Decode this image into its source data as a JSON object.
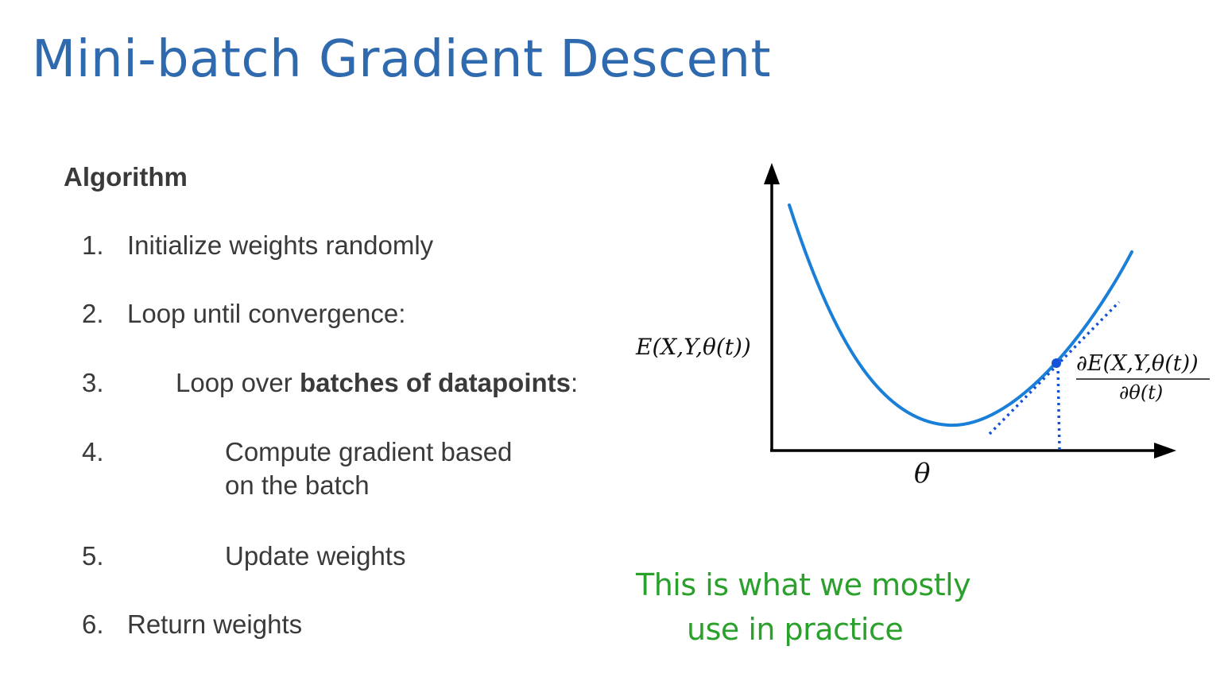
{
  "slide": {
    "title": "Mini-batch Gradient Descent",
    "section_heading": "Algorithm"
  },
  "steps": [
    {
      "num": "1.",
      "text": "Initialize weights randomly"
    },
    {
      "num": "2.",
      "text": "Loop until convergence:"
    },
    {
      "num": "3.",
      "text_before": "Loop over ",
      "text_bold": "batches of datapoints",
      "text_after": ":"
    },
    {
      "num": "4.",
      "line1": "Compute gradient based",
      "line2": "on the batch"
    },
    {
      "num": "5.",
      "text": "Update weights"
    },
    {
      "num": "6.",
      "text": "Return weights"
    }
  ],
  "diagram": {
    "y_label": "E(X,Y,θ(t))",
    "x_label": "θ",
    "gradient_label_numerator": "∂E(X,Y,θ(t))",
    "gradient_label_denominator": "∂θ(t)",
    "curve_color": "#1a7fd6",
    "tangent_color": "#1552d9",
    "point_color": "#1552d9"
  },
  "annotation": {
    "line1": "This is what we mostly",
    "line2": "use in practice",
    "color": "#2ca02c"
  }
}
